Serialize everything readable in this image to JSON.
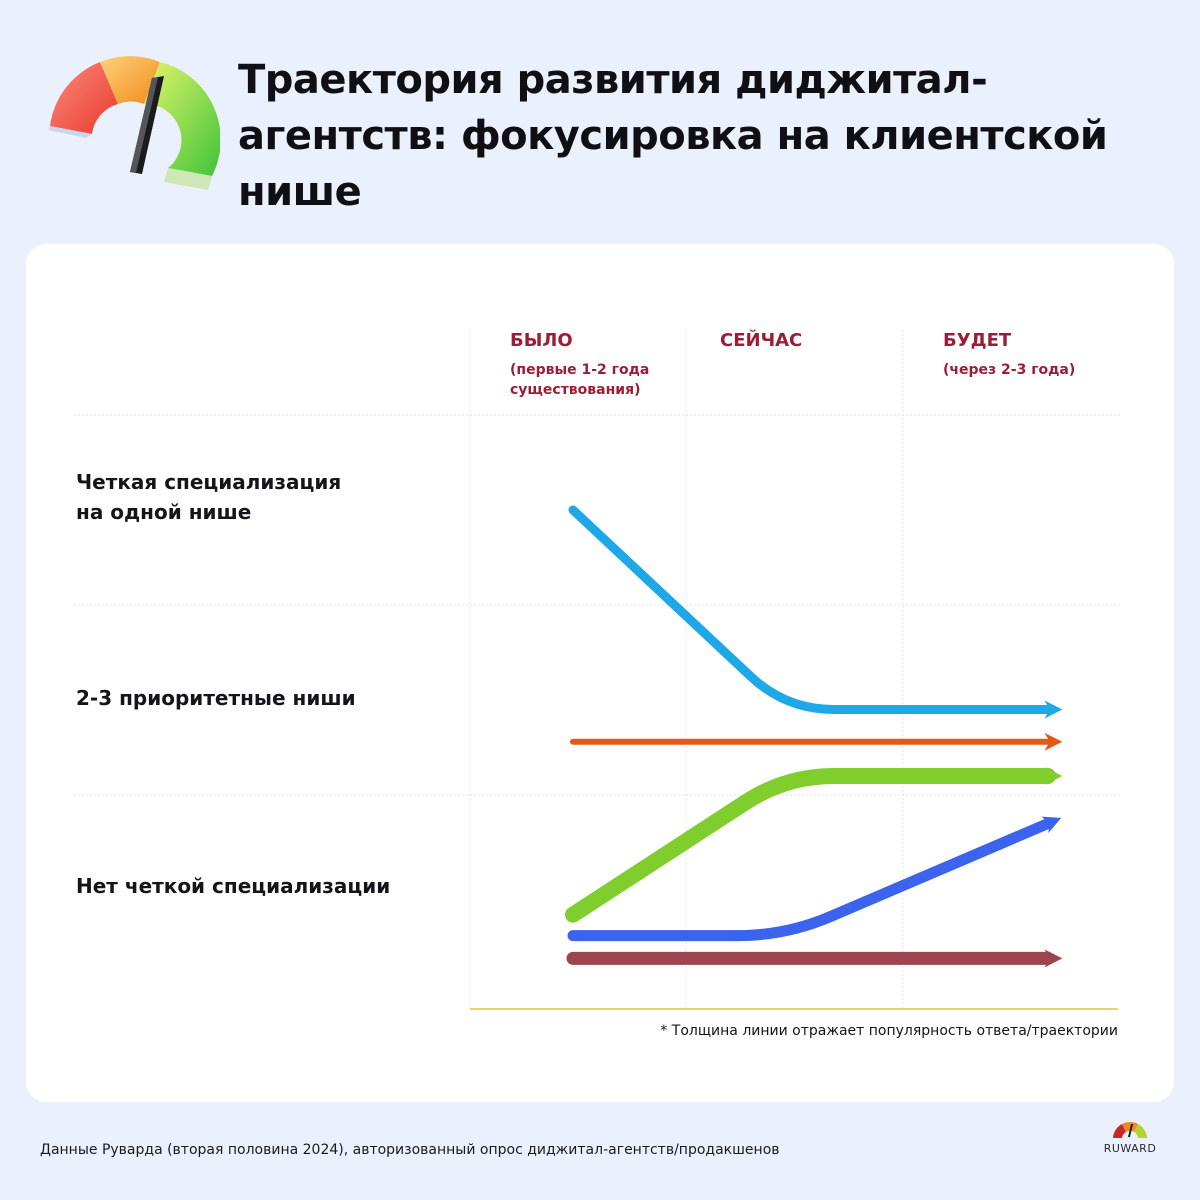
{
  "title": "Траектория развития диджитал-агентств: фокусировка на клиентской нише",
  "source_note": "Данные Руварда (вторая половина 2024), авторизованный опрос диджитал-агентств/продакшенов",
  "brand": {
    "logo_icon": "gauge-icon",
    "text": "RUWARD"
  },
  "chart_data": {
    "type": "line",
    "columns": [
      {
        "key": "was",
        "label": "БЫЛО",
        "sublabel": [
          "(первые 1-2 года",
          "существования)"
        ]
      },
      {
        "key": "now",
        "label": "СЕЙЧАС",
        "sublabel": []
      },
      {
        "key": "will",
        "label": "БУДЕТ",
        "sublabel": [
          "(через 2-3 года)"
        ]
      }
    ],
    "rows": [
      {
        "key": "clear",
        "label": [
          "Четкая специализация",
          "на одной нише"
        ]
      },
      {
        "key": "few",
        "label": [
          "2-3 приоритетные ниши"
        ]
      },
      {
        "key": "none",
        "label": [
          "Нет четкой специализации"
        ]
      }
    ],
    "footnote": "* Толщина линии отражает популярность ответа/траектории",
    "grid": true,
    "series": [
      {
        "color": "#1ea8e8",
        "width": 9,
        "points": [
          [
            "was",
            0.5
          ],
          [
            "now",
            1.55
          ],
          [
            "will",
            1.55
          ]
        ]
      },
      {
        "color": "#e3591a",
        "width": 6,
        "points": [
          [
            "was",
            1.72
          ],
          [
            "now",
            1.72
          ],
          [
            "will",
            1.72
          ]
        ]
      },
      {
        "color": "#7fce2e",
        "width": 16,
        "points": [
          [
            "was",
            2.63
          ],
          [
            "now",
            1.9
          ],
          [
            "will",
            1.9
          ]
        ]
      },
      {
        "color": "#3b63ee",
        "width": 11,
        "points": [
          [
            "was",
            2.74
          ],
          [
            "now",
            2.74
          ],
          [
            "will",
            2.15
          ]
        ]
      },
      {
        "color": "#9b464e",
        "width": 13,
        "points": [
          [
            "was",
            2.86
          ],
          [
            "now",
            2.86
          ],
          [
            "will",
            2.86
          ]
        ]
      }
    ]
  }
}
